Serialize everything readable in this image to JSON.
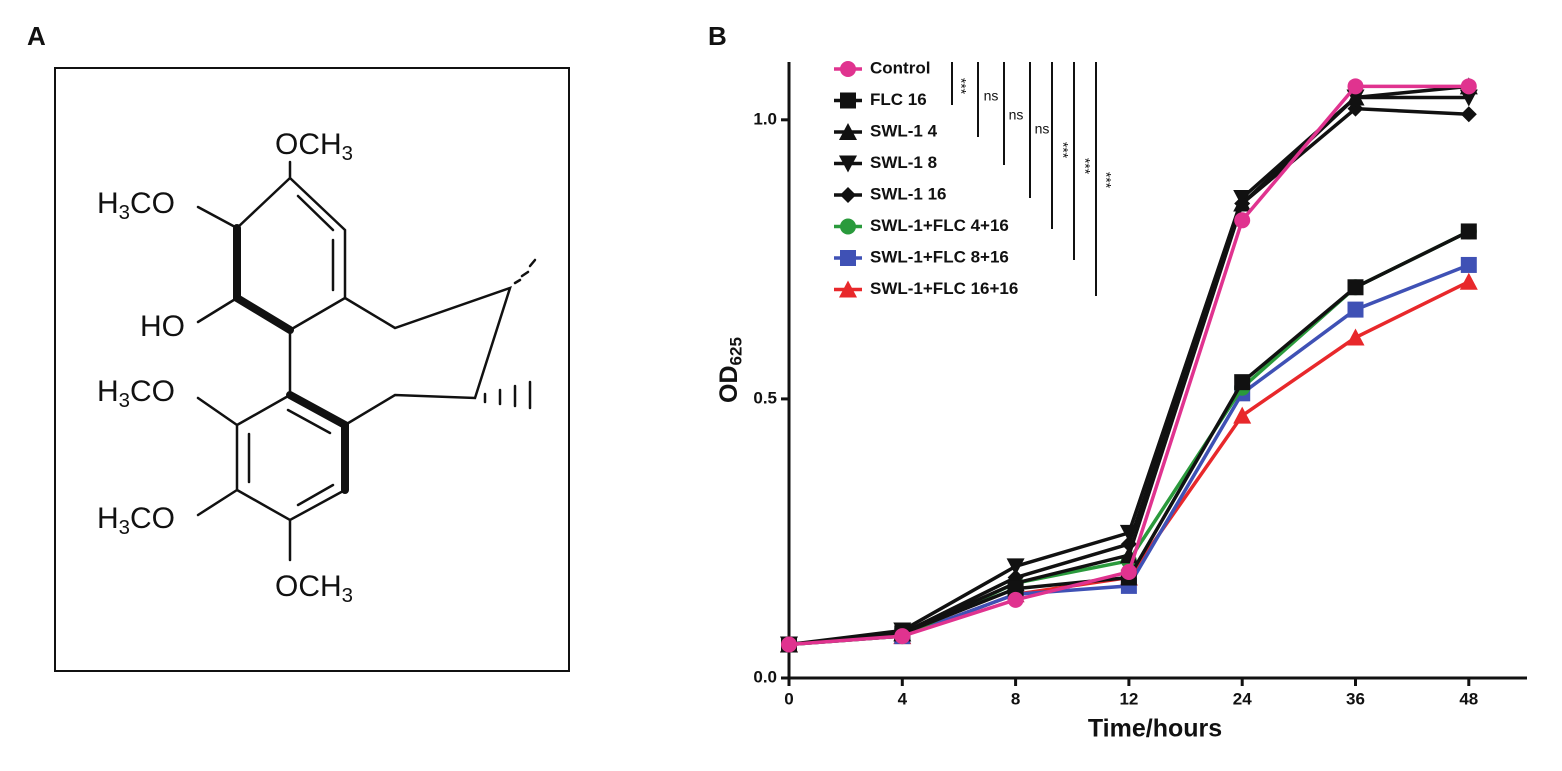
{
  "panel_labels": [
    "A",
    "B"
  ],
  "structure": {
    "labels": [
      [
        "OCH",
        "3"
      ],
      [
        "H",
        "3",
        "CO"
      ],
      [
        "HO"
      ],
      [
        "H",
        "3",
        "CO"
      ],
      [
        "H",
        "3",
        "CO"
      ],
      [
        "OCH",
        "3"
      ]
    ]
  },
  "chart_data": {
    "type": "line",
    "xlabel": "Time/hours",
    "ylabel": [
      "OD",
      "625"
    ],
    "categories": [
      "0",
      "4",
      "8",
      "12",
      "24",
      "36",
      "48"
    ],
    "ylim": [
      0,
      1.1
    ],
    "yticks": [
      {
        "value": 0,
        "label": "0.0"
      },
      {
        "value": 0.5,
        "label": "0.5"
      },
      {
        "value": 1,
        "label": "1.0"
      }
    ],
    "series": [
      {
        "name": "Control",
        "color": "#e0338f",
        "marker": "circle",
        "values": [
          0.06,
          0.075,
          0.14,
          0.19,
          0.82,
          1.06,
          1.06
        ]
      },
      {
        "name": "FLC 16",
        "color": "#111111",
        "marker": "square",
        "values": [
          0.06,
          0.08,
          0.16,
          0.18,
          0.53,
          0.7,
          0.8
        ]
      },
      {
        "name": "SWL-1 4",
        "color": "#111111",
        "marker": "triangle",
        "values": [
          0.06,
          0.08,
          0.17,
          0.22,
          0.85,
          1.04,
          1.06
        ]
      },
      {
        "name": "SWL-1 8",
        "color": "#111111",
        "marker": "triangle-down",
        "values": [
          0.06,
          0.085,
          0.2,
          0.26,
          0.86,
          1.04,
          1.04
        ]
      },
      {
        "name": "SWL-1 16",
        "color": "#111111",
        "marker": "diamond",
        "values": [
          0.06,
          0.08,
          0.18,
          0.24,
          0.85,
          1.02,
          1.01
        ]
      },
      {
        "name": "SWL-1+FLC 4+16",
        "color": "#2a9a3c",
        "marker": "circle",
        "values": [
          0.06,
          0.075,
          0.17,
          0.21,
          0.52,
          0.7,
          0.8
        ]
      },
      {
        "name": "SWL-1+FLC 8+16",
        "color": "#3f51b5",
        "marker": "square",
        "values": [
          0.06,
          0.075,
          0.15,
          0.165,
          0.51,
          0.66,
          0.74
        ]
      },
      {
        "name": "SWL-1+FLC 16+16",
        "color": "#e8282b",
        "marker": "triangle",
        "values": [
          0.06,
          0.075,
          0.15,
          0.18,
          0.47,
          0.61,
          0.71
        ]
      }
    ],
    "annotations": [
      "***",
      "ns",
      "ns",
      "ns",
      "***",
      "***",
      "***"
    ]
  }
}
